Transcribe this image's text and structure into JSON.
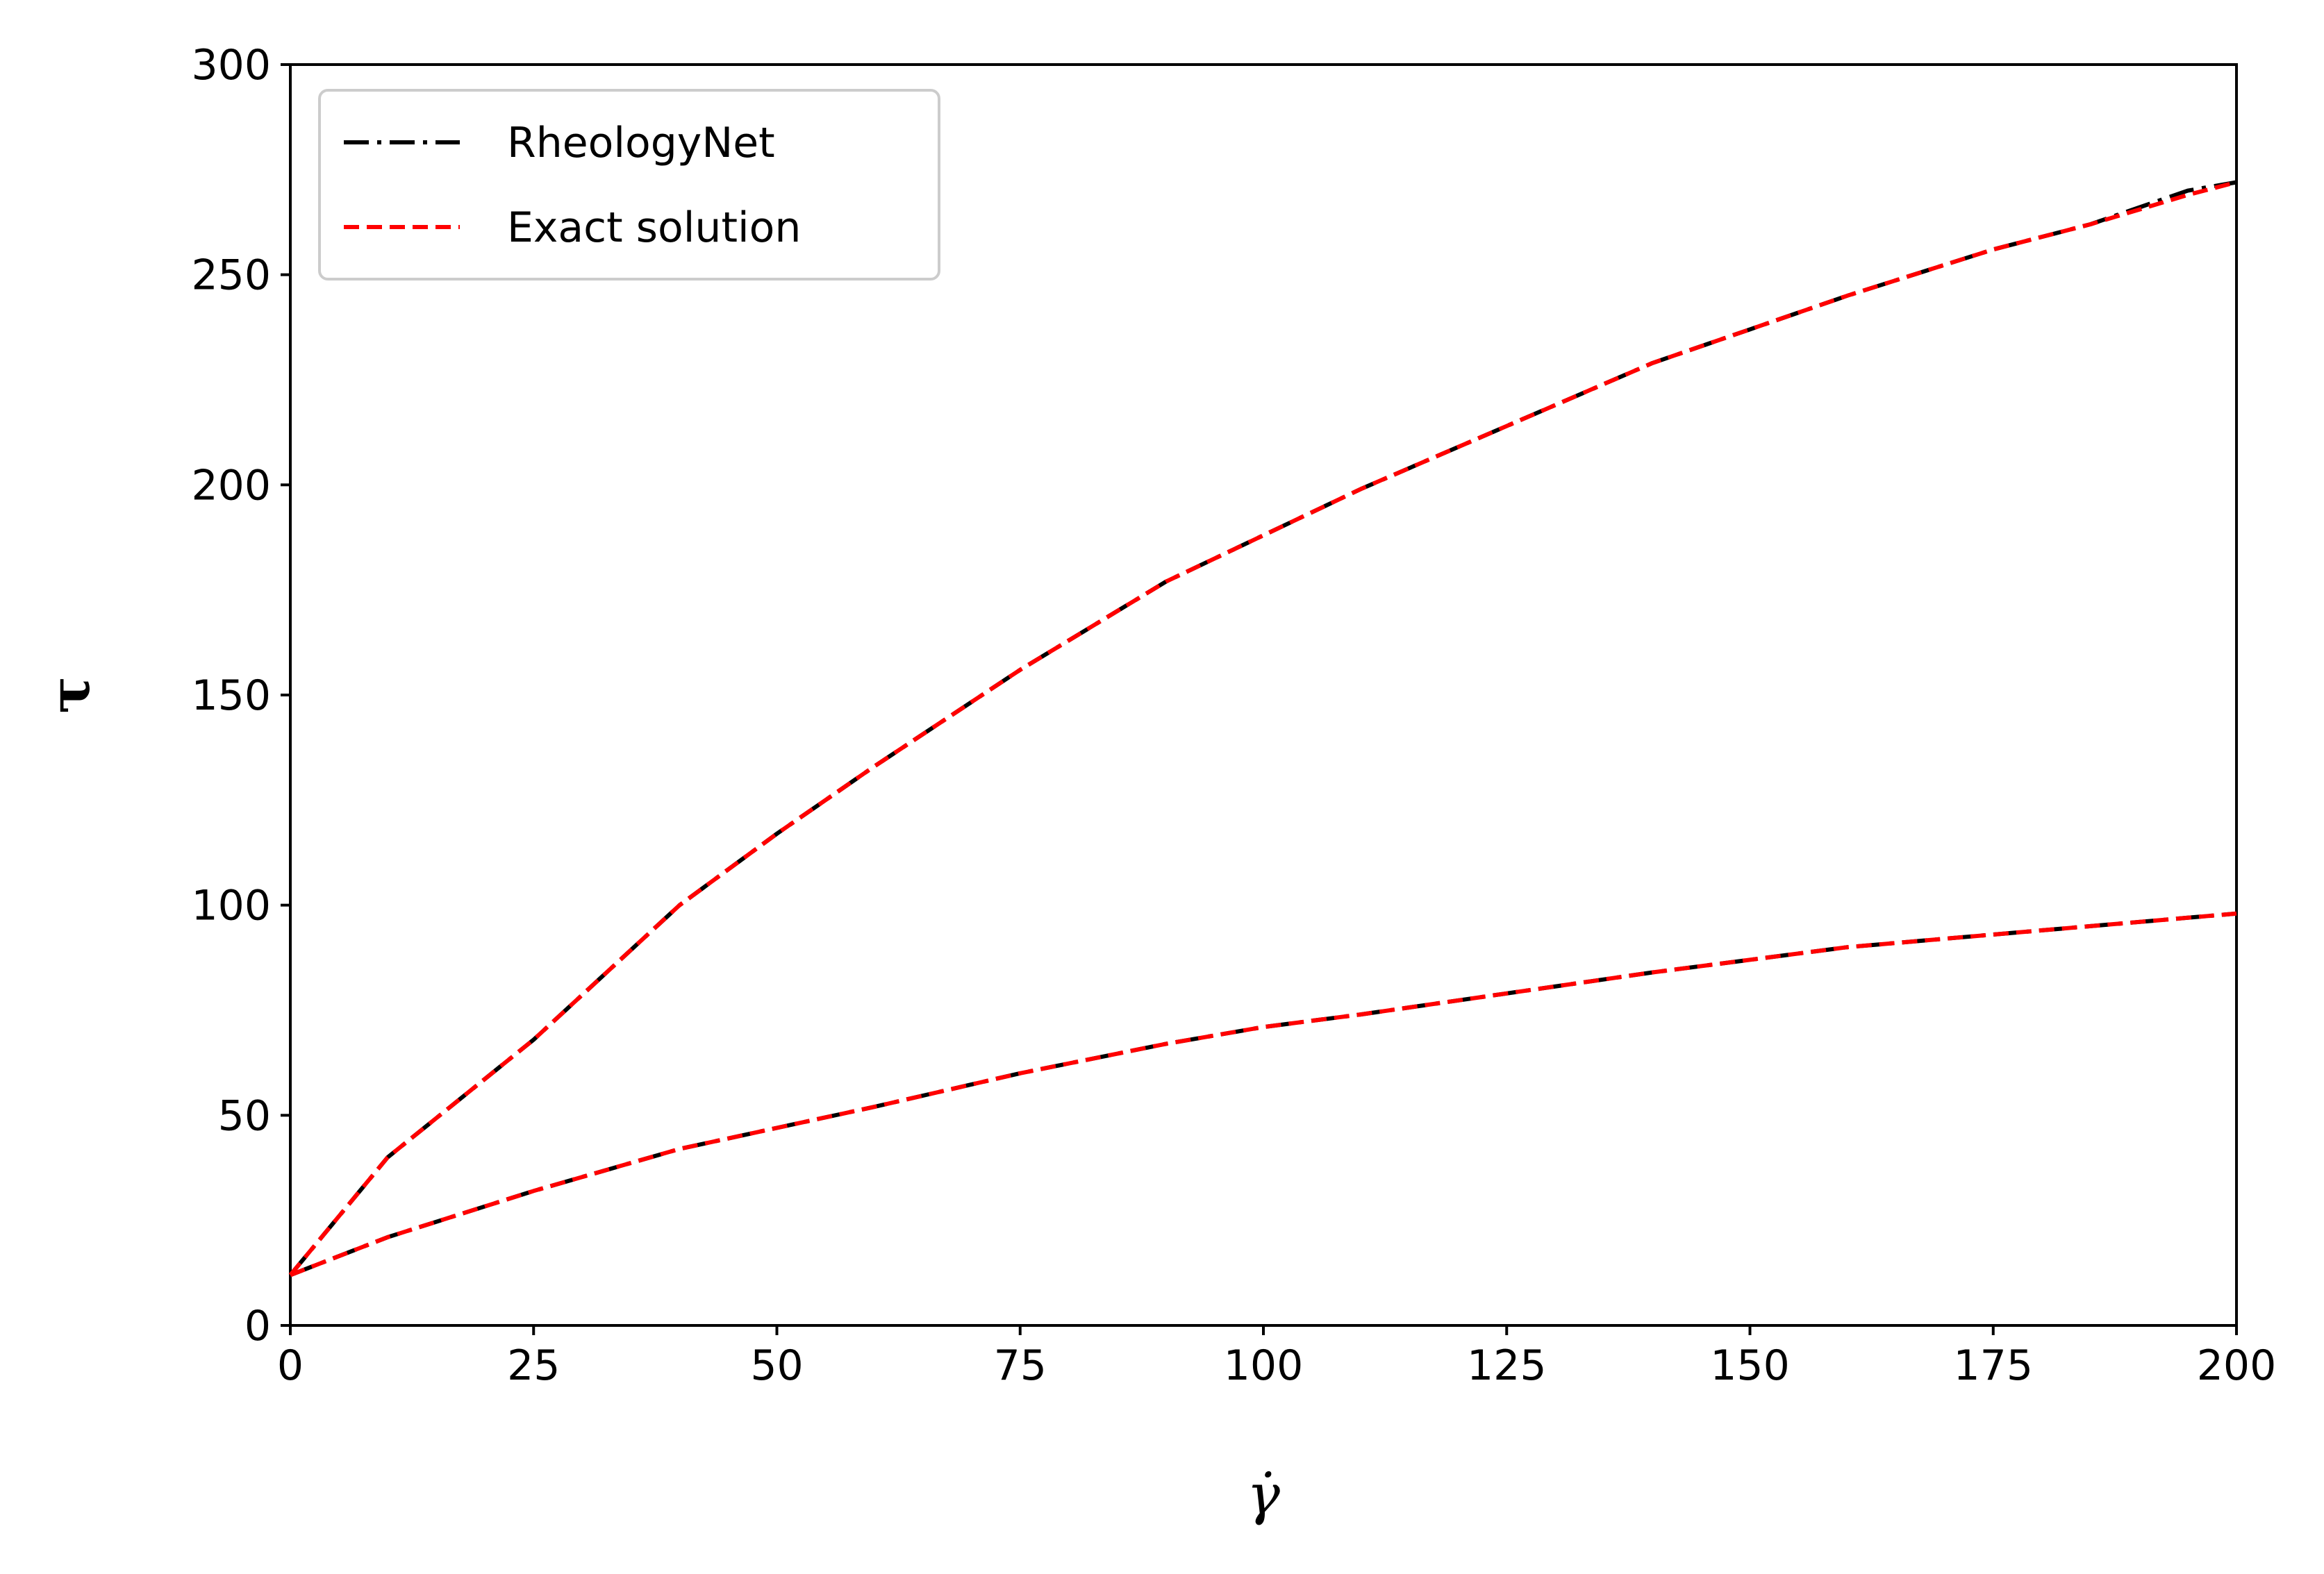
{
  "chart_data": {
    "type": "line",
    "xlabel": "γ̇",
    "ylabel": "τ",
    "xlim": [
      0,
      200
    ],
    "ylim": [
      0,
      300
    ],
    "xticks": [
      0,
      25,
      50,
      75,
      100,
      125,
      150,
      175,
      200
    ],
    "yticks": [
      0,
      50,
      100,
      150,
      200,
      250,
      300
    ],
    "grid": false,
    "legend_position": "upper-left",
    "legend": [
      {
        "label": "RheologyNet",
        "color": "#000000",
        "style": "dashdot"
      },
      {
        "label": "Exact solution",
        "color": "#ff0000",
        "style": "dashed"
      }
    ],
    "series": [
      {
        "name": "RheologyNet",
        "color": "#000000",
        "style": "dashdot",
        "curves": [
          {
            "x": [
              0,
              10,
              25,
              40,
              50,
              60,
              75,
              90,
              100,
              110,
              125,
              140,
              150,
              160,
              175,
              185,
              195,
              200
            ],
            "y": [
              12,
              40,
              68,
              100,
              117,
              133,
              156,
              177,
              188,
              199,
              214,
              229,
              237,
              245,
              256,
              262,
              270,
              272
            ]
          },
          {
            "x": [
              0,
              10,
              25,
              40,
              50,
              60,
              75,
              90,
              100,
              110,
              125,
              140,
              150,
              160,
              175,
              185,
              195,
              200
            ],
            "y": [
              12,
              21,
              32,
              42,
              47,
              52,
              60,
              67,
              71,
              74,
              79,
              84,
              87,
              90,
              93,
              95,
              97,
              98
            ]
          }
        ]
      },
      {
        "name": "Exact solution",
        "color": "#ff0000",
        "style": "dashed",
        "curves": [
          {
            "x": [
              0,
              10,
              25,
              40,
              50,
              60,
              75,
              90,
              100,
              110,
              125,
              140,
              150,
              160,
              175,
              185,
              195,
              200
            ],
            "y": [
              12,
              40,
              68,
              100,
              117,
              133,
              156,
              177,
              188,
              199,
              214,
              229,
              237,
              245,
              256,
              262,
              269,
              272
            ]
          },
          {
            "x": [
              0,
              10,
              25,
              40,
              50,
              60,
              75,
              90,
              100,
              110,
              125,
              140,
              150,
              160,
              175,
              185,
              195,
              200
            ],
            "y": [
              12,
              21,
              32,
              42,
              47,
              52,
              60,
              67,
              71,
              74,
              79,
              84,
              87,
              90,
              93,
              95,
              97,
              98
            ]
          }
        ]
      }
    ]
  }
}
